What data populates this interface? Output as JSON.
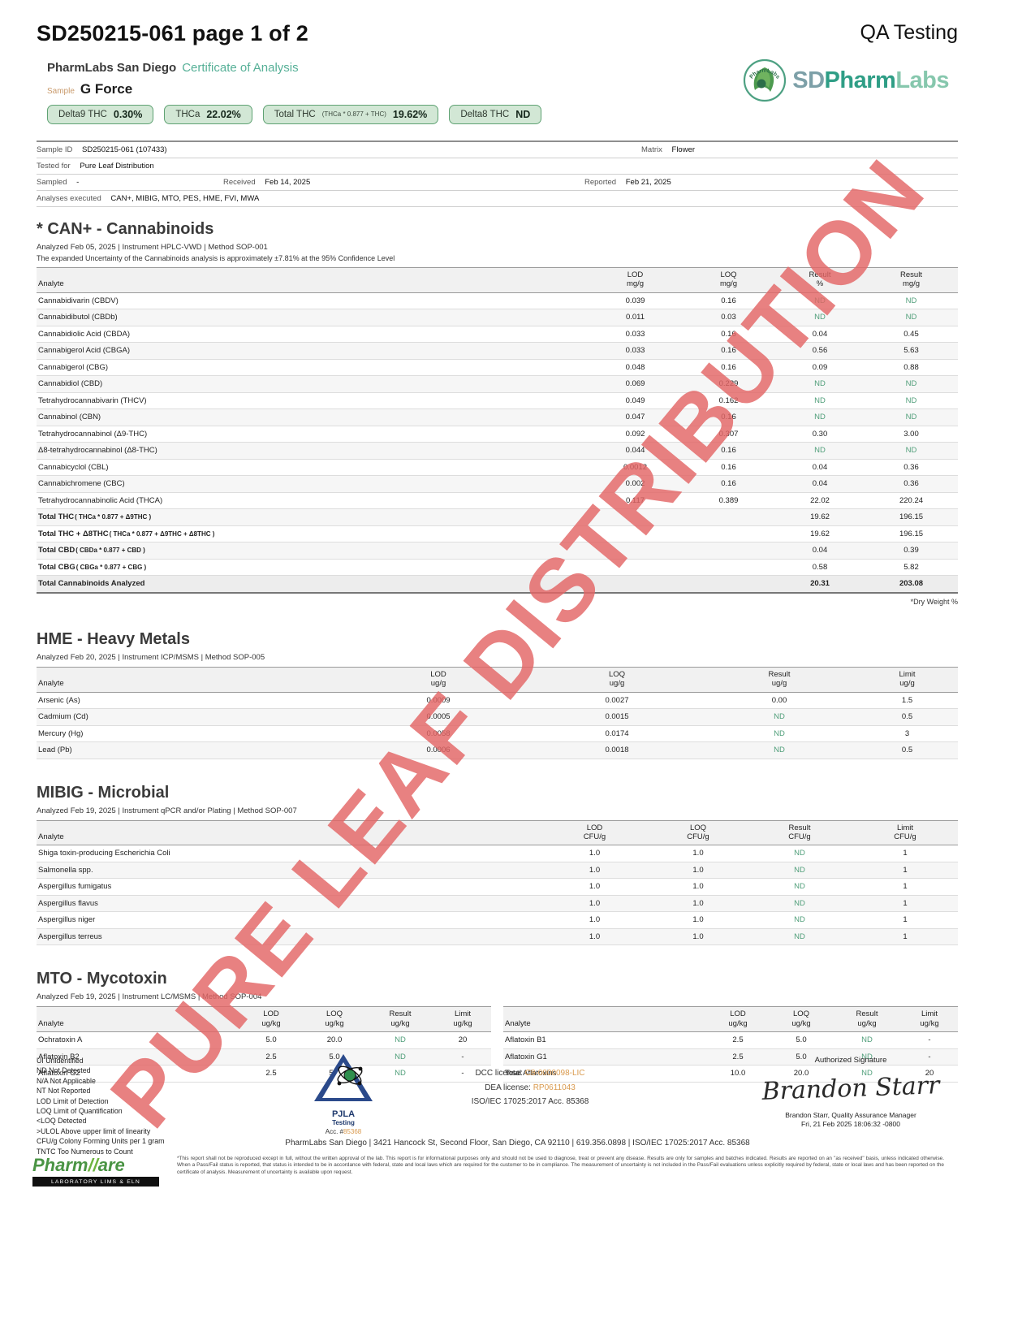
{
  "header": {
    "doc_id": "SD250215-061 page 1 of 2",
    "qa_label": "QA Testing",
    "lab_name": "PharmLabs San Diego",
    "coa_label": "Certificate of Analysis",
    "sample_label": "Sample",
    "sample_name": "G Force",
    "logo": {
      "arc_text": "PharmLabs",
      "sd": "SD",
      "pharm": "Pharm",
      "labs": "Labs"
    }
  },
  "watermark": "PURE LEAF DISTRIBUTION",
  "badges": [
    {
      "label": "Delta9 THC",
      "formula": "",
      "value": "0.30%"
    },
    {
      "label": "THCa",
      "formula": "",
      "value": "22.02%"
    },
    {
      "label": "Total THC",
      "formula": "(THCa * 0.877 + THC)",
      "value": "19.62%"
    },
    {
      "label": "Delta8 THC",
      "formula": "",
      "value": "ND"
    }
  ],
  "sample_info": {
    "sample_id_label": "Sample ID",
    "sample_id": "SD250215-061 (107433)",
    "matrix_label": "Matrix",
    "matrix": "Flower",
    "tested_for_label": "Tested for",
    "tested_for": "Pure Leaf Distribution",
    "sampled_label": "Sampled",
    "sampled": "-",
    "received_label": "Received",
    "received": "Feb 14, 2025",
    "reported_label": "Reported",
    "reported": "Feb 21, 2025",
    "analyses_label": "Analyses executed",
    "analyses": "CAN+, MIBIG, MTO, PES, HME, FVI, MWA"
  },
  "cannabinoids": {
    "title": "* CAN+ - Cannabinoids",
    "meta": "Analyzed Feb 05, 2025   |   Instrument HPLC-VWD   | Method SOP-001",
    "uncertainty": "The expanded Uncertainty of the Cannabinoids analysis is approximately ±7.81% at the 95% Confidence Level",
    "headers": [
      {
        "t": "Analyte",
        "u": ""
      },
      {
        "t": "LOD",
        "u": "mg/g"
      },
      {
        "t": "LOQ",
        "u": "mg/g"
      },
      {
        "t": "Result",
        "u": "%"
      },
      {
        "t": "Result",
        "u": "mg/g"
      }
    ],
    "rows": [
      [
        "Cannabidivarin (CBDV)",
        "0.039",
        "0.16",
        "ND",
        "ND"
      ],
      [
        "Cannabidibutol (CBDb)",
        "0.011",
        "0.03",
        "ND",
        "ND"
      ],
      [
        "Cannabidiolic Acid (CBDA)",
        "0.033",
        "0.16",
        "0.04",
        "0.45"
      ],
      [
        "Cannabigerol Acid (CBGA)",
        "0.033",
        "0.16",
        "0.56",
        "5.63"
      ],
      [
        "Cannabigerol (CBG)",
        "0.048",
        "0.16",
        "0.09",
        "0.88"
      ],
      [
        "Cannabidiol (CBD)",
        "0.069",
        "0.229",
        "ND",
        "ND"
      ],
      [
        "Tetrahydrocannabivarin (THCV)",
        "0.049",
        "0.162",
        "ND",
        "ND"
      ],
      [
        "Cannabinol (CBN)",
        "0.047",
        "0.16",
        "ND",
        "ND"
      ],
      [
        "Tetrahydrocannabinol (Δ9-THC)",
        "0.092",
        "0.307",
        "0.30",
        "3.00"
      ],
      [
        "Δ8-tetrahydrocannabinol (Δ8-THC)",
        "0.044",
        "0.16",
        "ND",
        "ND"
      ],
      [
        "Cannabicyclol (CBL)",
        "0.0012",
        "0.16",
        "0.04",
        "0.36"
      ],
      [
        "Cannabichromene (CBC)",
        "0.002",
        "0.16",
        "0.04",
        "0.36"
      ],
      [
        "Tetrahydrocannabinolic Acid (THCA)",
        "0.117",
        "0.389",
        "22.02",
        "220.24"
      ]
    ],
    "totals": [
      {
        "label": "Total THC",
        "formula": "( THCa * 0.877 + Δ9THC )",
        "pct": "19.62",
        "mg": "196.15"
      },
      {
        "label": "Total THC + Δ8THC",
        "formula": "( THCa * 0.877 + Δ9THC + Δ8THC )",
        "pct": "19.62",
        "mg": "196.15"
      },
      {
        "label": "Total CBD",
        "formula": "( CBDa * 0.877 + CBD )",
        "pct": "0.04",
        "mg": "0.39"
      },
      {
        "label": "Total CBG",
        "formula": "( CBGa * 0.877 + CBG )",
        "pct": "0.58",
        "mg": "5.82"
      }
    ],
    "grand_total": {
      "label": "Total Cannabinoids Analyzed",
      "pct": "20.31",
      "mg": "203.08"
    },
    "dry_note": "*Dry Weight %"
  },
  "heavy_metals": {
    "title": "HME - Heavy Metals",
    "meta": "Analyzed Feb 20, 2025  | Instrument ICP/MSMS  | Method SOP-005",
    "headers": [
      {
        "t": "Analyte",
        "u": ""
      },
      {
        "t": "LOD",
        "u": "ug/g"
      },
      {
        "t": "LOQ",
        "u": "ug/g"
      },
      {
        "t": "Result",
        "u": "ug/g"
      },
      {
        "t": "Limit",
        "u": "ug/g"
      }
    ],
    "rows": [
      [
        "Arsenic (As)",
        "0.0009",
        "0.0027",
        "0.00",
        "1.5"
      ],
      [
        "Cadmium (Cd)",
        "0.0005",
        "0.0015",
        "ND",
        "0.5"
      ],
      [
        "Mercury (Hg)",
        "0.0058",
        "0.0174",
        "ND",
        "3"
      ],
      [
        "Lead (Pb)",
        "0.0006",
        "0.0018",
        "ND",
        "0.5"
      ]
    ]
  },
  "microbial": {
    "title": "MIBIG - Microbial",
    "meta": "Analyzed Feb 19, 2025  | Instrument qPCR and/or Plating  | Method SOP-007",
    "headers": [
      {
        "t": "Analyte",
        "u": ""
      },
      {
        "t": "LOD",
        "u": "CFU/g"
      },
      {
        "t": "LOQ",
        "u": "CFU/g"
      },
      {
        "t": "Result",
        "u": "CFU/g"
      },
      {
        "t": "Limit",
        "u": "CFU/g"
      }
    ],
    "rows": [
      [
        "Shiga toxin-producing Escherichia Coli",
        "1.0",
        "1.0",
        "ND",
        "1"
      ],
      [
        "Salmonella spp.",
        "1.0",
        "1.0",
        "ND",
        "1"
      ],
      [
        "Aspergillus fumigatus",
        "1.0",
        "1.0",
        "ND",
        "1"
      ],
      [
        "Aspergillus flavus",
        "1.0",
        "1.0",
        "ND",
        "1"
      ],
      [
        "Aspergillus niger",
        "1.0",
        "1.0",
        "ND",
        "1"
      ],
      [
        "Aspergillus terreus",
        "1.0",
        "1.0",
        "ND",
        "1"
      ]
    ]
  },
  "mycotoxin": {
    "title": "MTO - Mycotoxin",
    "meta": "Analyzed Feb 19, 2025  | Instrument LC/MSMS  | Method SOP-004",
    "headers": [
      {
        "t": "Analyte",
        "u": ""
      },
      {
        "t": "LOD",
        "u": "ug/kg"
      },
      {
        "t": "LOQ",
        "u": "ug/kg"
      },
      {
        "t": "Result",
        "u": "ug/kg"
      },
      {
        "t": "Limit",
        "u": "ug/kg"
      }
    ],
    "left_rows": [
      [
        "Ochratoxin A",
        "5.0",
        "20.0",
        "ND",
        "20"
      ],
      [
        "Aflatoxin B2",
        "2.5",
        "5.0",
        "ND",
        "-"
      ],
      [
        "Aflatoxin G2",
        "2.5",
        "5.0",
        "ND",
        "-"
      ]
    ],
    "right_rows": [
      [
        "Aflatoxin B1",
        "2.5",
        "5.0",
        "ND",
        "-"
      ],
      [
        "Aflatoxin G1",
        "2.5",
        "5.0",
        "ND",
        "-"
      ],
      [
        "Total Aflatoxins",
        "10.0",
        "20.0",
        "ND",
        "20"
      ]
    ]
  },
  "footer": {
    "legend": [
      "UI Unidentified",
      "ND Not Detected",
      "N/A Not Applicable",
      "NT Not Reported",
      "LOD Limit of Detection",
      "LOQ Limit of Quantification",
      "<LOQ Detected",
      ">ULOL Above upper limit of linearity",
      "CFU/g Colony Forming Units per 1 gram",
      "TNTC Too Numerous to Count"
    ],
    "pjla": {
      "name": "PJLA",
      "sub": "Testing",
      "acc_label": "Acc. #",
      "acc_value": "85368"
    },
    "licenses": {
      "dcc_label": "DCC license:",
      "dcc": "C8-0000098-LIC",
      "dea_label": "DEA license:",
      "dea": "RP0611043",
      "iso": "ISO/IEC 17025:2017 Acc. 85368"
    },
    "signature": {
      "title": "Authorized Signature",
      "script": "Brandon Starr",
      "name": "Brandon Starr, Quality Assurance Manager",
      "date": "Fri, 21 Feb 2025 18:06:32 -0800"
    },
    "address": "PharmLabs San Diego | 3421 Hancock St, Second Floor, San Diego, CA 92110 | 619.356.0898 | ISO/IEC 17025:2017 Acc. 85368",
    "disclaimer": "*This report shall not be reproduced except in full, without the written approval of the lab. This report is for informational purposes only and should not be used to diagnose, treat or prevent any disease. Results are only for samples and batches indicated. Results are reported on an \"as received\" basis, unless indicated otherwise. When a Pass/Fail status is reported, that status is intended to be in accordance with federal, state and local laws which are required for the customer to be in compliance. The measurement of uncertainty is not included in the Pass/Fail evaluations unless explicitly required by federal, state or local laws and has been reported on the certificate of analysis. Measurement of uncertainty is available upon request.",
    "pharmware": {
      "part1": "Pharm",
      "slashes": "//",
      "part2": "are",
      "tagline": "LABORATORY LIMS & ELN"
    }
  },
  "colors": {
    "accent_teal": "#56b097",
    "nd_green": "#4f9e79",
    "watermark_red": "#e36565",
    "badge_green": "#d2e7d5",
    "license_orange": "#d99a4e"
  }
}
